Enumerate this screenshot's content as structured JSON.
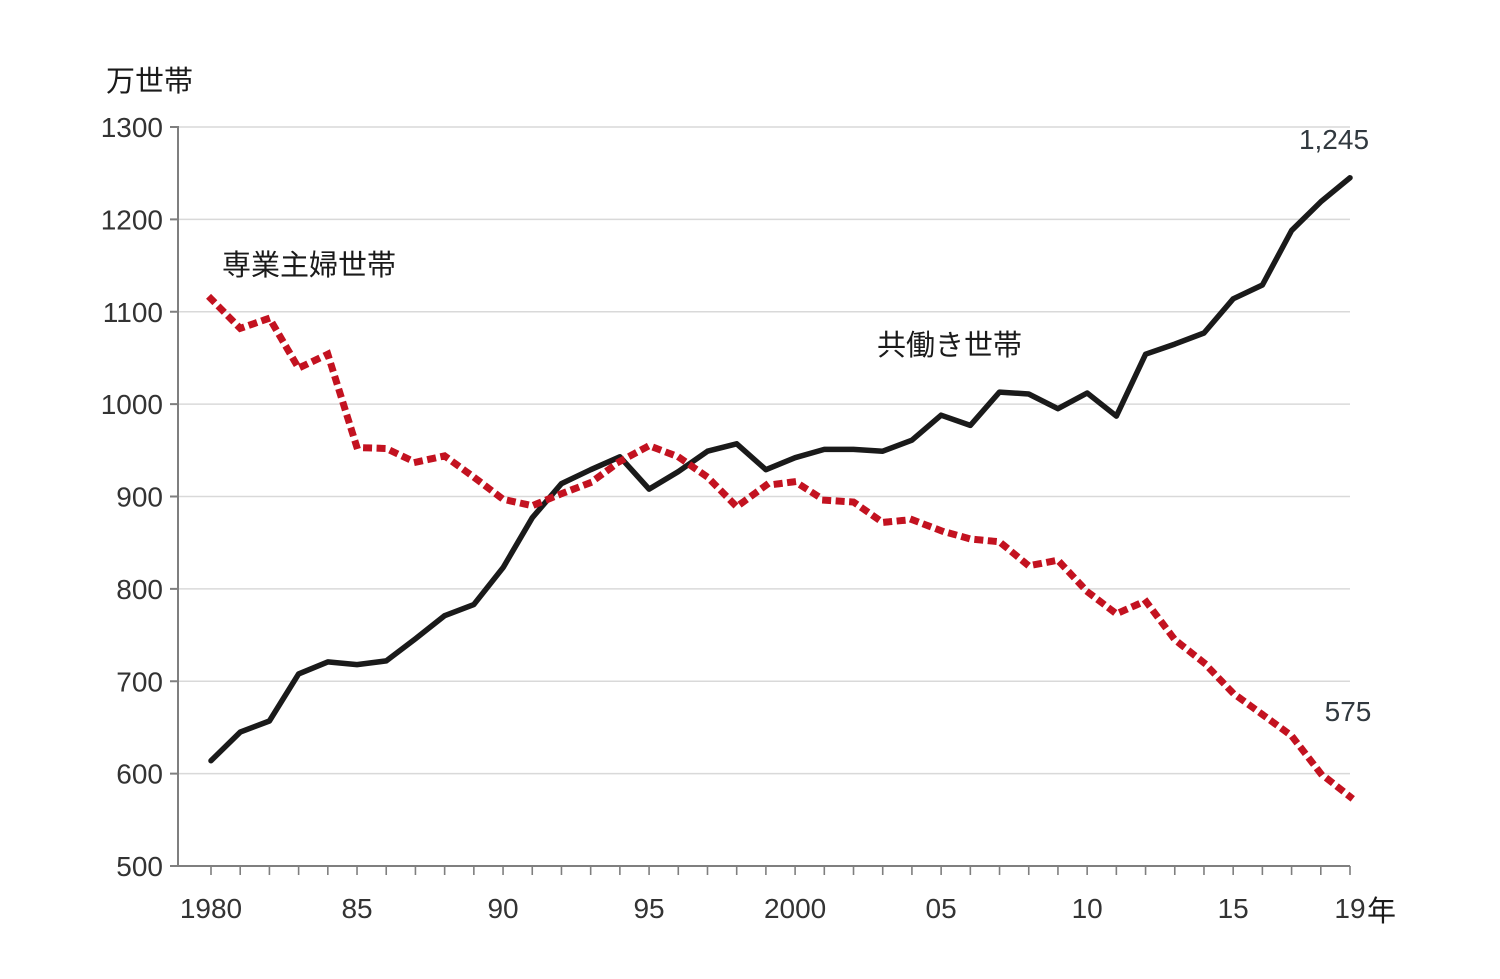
{
  "chart_data": {
    "type": "line",
    "title": "",
    "unit_label": "万世帯",
    "x_axis_suffix": "年",
    "xlabel": "",
    "ylabel": "万世帯",
    "ylim": [
      500,
      1300
    ],
    "y_ticks": [
      500,
      600,
      700,
      800,
      900,
      1000,
      1100,
      1200,
      1300
    ],
    "x_range": [
      1980,
      2019
    ],
    "x_tick_labels": [
      {
        "year": 1980,
        "label": "1980"
      },
      {
        "year": 1985,
        "label": "85"
      },
      {
        "year": 1990,
        "label": "90"
      },
      {
        "year": 1995,
        "label": "95"
      },
      {
        "year": 2000,
        "label": "2000"
      },
      {
        "year": 2005,
        "label": "05"
      },
      {
        "year": 2010,
        "label": "10"
      },
      {
        "year": 2015,
        "label": "15"
      },
      {
        "year": 2019,
        "label": "19"
      }
    ],
    "grid": true,
    "legend_position": "inline-labels",
    "years": [
      1980,
      1981,
      1982,
      1983,
      1984,
      1985,
      1986,
      1987,
      1988,
      1989,
      1990,
      1991,
      1992,
      1993,
      1994,
      1995,
      1996,
      1997,
      1998,
      1999,
      2000,
      2001,
      2002,
      2003,
      2004,
      2005,
      2006,
      2007,
      2008,
      2009,
      2010,
      2011,
      2012,
      2013,
      2014,
      2015,
      2016,
      2017,
      2018,
      2019
    ],
    "series": [
      {
        "name": "共働き世帯",
        "style": "solid",
        "color": "#1a1a1a",
        "end_label": "1,245",
        "values": [
          614,
          645,
          657,
          708,
          721,
          718,
          722,
          746,
          771,
          783,
          823,
          877,
          914,
          929,
          943,
          908,
          927,
          949,
          957,
          929,
          942,
          951,
          951,
          949,
          961,
          988,
          977,
          1013,
          1011,
          995,
          1012,
          987,
          1054,
          1065,
          1077,
          1114,
          1129,
          1188,
          1219,
          1245
        ]
      },
      {
        "name": "専業主婦世帯",
        "style": "dotted",
        "color": "#c31220",
        "end_label": "575",
        "values": [
          1114,
          1082,
          1093,
          1039,
          1054,
          953,
          952,
          937,
          944,
          921,
          897,
          890,
          903,
          915,
          938,
          955,
          943,
          921,
          889,
          912,
          916,
          896,
          894,
          872,
          875,
          863,
          854,
          851,
          825,
          831,
          797,
          773,
          787,
          745,
          720,
          687,
          664,
          641,
          600,
          575
        ]
      }
    ],
    "colors": {
      "grid": "#d9d9d9",
      "axis": "#7f7f7f",
      "tick_text": "#333333"
    }
  }
}
